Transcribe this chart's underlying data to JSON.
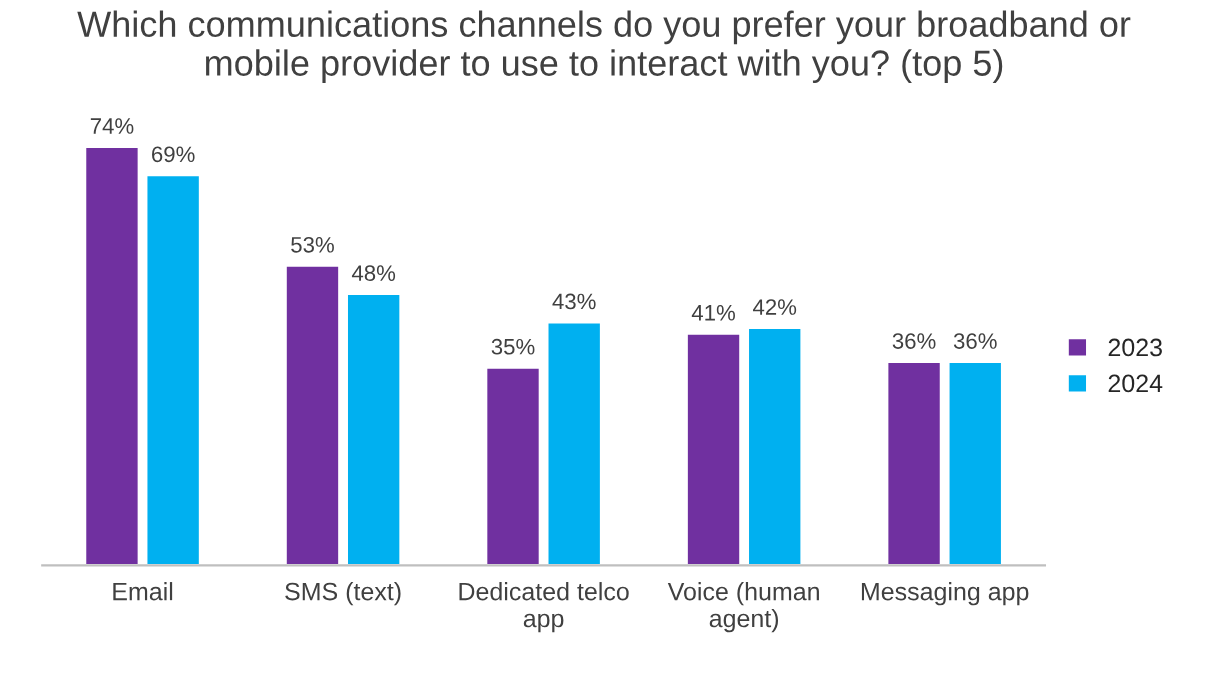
{
  "chart_data": {
    "type": "bar",
    "title": "Which communications channels do you prefer your broadband or\nmobile provider to use to interact with you? (top 5)",
    "categories": [
      "Email",
      "SMS (text)",
      "Dedicated telco\napp",
      "Voice (human\nagent)",
      "Messaging app"
    ],
    "series": [
      {
        "name": "2023",
        "color": "#7030a0",
        "values": [
          74,
          53,
          35,
          41,
          36
        ],
        "value_labels": [
          "74%",
          "53%",
          "35%",
          "41%",
          "36%"
        ]
      },
      {
        "name": "2024",
        "color": "#00b0f0",
        "values": [
          69,
          48,
          43,
          42,
          36
        ],
        "value_labels": [
          "69%",
          "48%",
          "43%",
          "42%",
          "36%"
        ]
      }
    ],
    "legend": "right",
    "grid": false
  }
}
